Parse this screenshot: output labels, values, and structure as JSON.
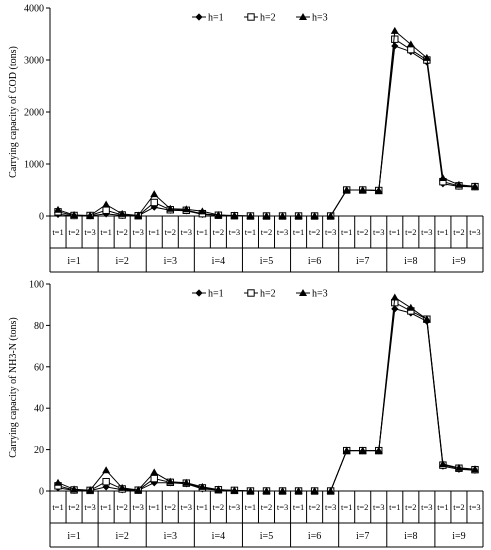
{
  "chart_data": [
    {
      "type": "line",
      "ylabel": "Carrying capacity of COD (tons)",
      "ylim": [
        0,
        4000
      ],
      "yticks": [
        0,
        1000,
        2000,
        3000,
        4000
      ],
      "categories": [
        "t=1",
        "t=2",
        "t=3",
        "t=1",
        "t=2",
        "t=3",
        "t=1",
        "t=2",
        "t=3",
        "t=1",
        "t=2",
        "t=3",
        "t=1",
        "t=2",
        "t=3",
        "t=1",
        "t=2",
        "t=3",
        "t=1",
        "t=2",
        "t=3",
        "t=1",
        "t=2",
        "t=3",
        "t=1",
        "t=2",
        "t=3"
      ],
      "groups": [
        "i=1",
        "i=2",
        "i=3",
        "i=4",
        "i=5",
        "i=6",
        "i=7",
        "i=8",
        "i=9"
      ],
      "legend_position": "top-center",
      "series": [
        {
          "name": "h=1",
          "marker": "diamond",
          "values": [
            30,
            5,
            5,
            40,
            10,
            5,
            170,
            110,
            100,
            30,
            15,
            5,
            0,
            0,
            0,
            0,
            0,
            0,
            500,
            500,
            490,
            3270,
            3160,
            2960,
            620,
            570,
            560
          ]
        },
        {
          "name": "h=2",
          "marker": "square-open",
          "values": [
            80,
            10,
            10,
            110,
            20,
            5,
            260,
            120,
            110,
            45,
            15,
            5,
            0,
            0,
            0,
            0,
            0,
            0,
            500,
            500,
            490,
            3400,
            3200,
            3000,
            660,
            580,
            565
          ]
        },
        {
          "name": "h=3",
          "marker": "triangle",
          "values": [
            120,
            20,
            10,
            220,
            40,
            10,
            420,
            140,
            130,
            90,
            20,
            10,
            0,
            0,
            0,
            0,
            0,
            0,
            500,
            500,
            490,
            3560,
            3300,
            3040,
            730,
            600,
            570
          ]
        }
      ]
    },
    {
      "type": "line",
      "ylabel": "Carrying capacity of NH3-N (tons)",
      "ylim": [
        0,
        100
      ],
      "yticks": [
        0,
        20,
        40,
        60,
        80,
        100
      ],
      "categories": [
        "t=1",
        "t=2",
        "t=3",
        "t=1",
        "t=2",
        "t=3",
        "t=1",
        "t=2",
        "t=3",
        "t=1",
        "t=2",
        "t=3",
        "t=1",
        "t=2",
        "t=3",
        "t=1",
        "t=2",
        "t=3",
        "t=1",
        "t=2",
        "t=3",
        "t=1",
        "t=2",
        "t=3",
        "t=1",
        "t=2",
        "t=3"
      ],
      "groups": [
        "i=1",
        "i=2",
        "i=3",
        "i=4",
        "i=5",
        "i=6",
        "i=7",
        "i=8",
        "i=9"
      ],
      "legend_position": "top-center",
      "series": [
        {
          "name": "h=1",
          "marker": "diamond",
          "values": [
            1.5,
            0.3,
            0.2,
            2,
            0.6,
            0.3,
            4,
            4,
            3.5,
            1,
            0.5,
            0.2,
            0,
            0,
            0,
            0,
            0,
            0,
            19.5,
            19.5,
            19.5,
            88,
            86,
            82,
            12,
            10.5,
            10
          ]
        },
        {
          "name": "h=2",
          "marker": "square-open",
          "values": [
            2.5,
            0.5,
            0.3,
            4.5,
            1,
            0.4,
            6,
            4.2,
            3.8,
            1.5,
            0.6,
            0.3,
            0,
            0,
            0,
            0,
            0,
            0,
            19.5,
            19.5,
            19.5,
            91,
            87,
            83,
            12.5,
            11,
            10.3
          ]
        },
        {
          "name": "h=3",
          "marker": "triangle",
          "values": [
            4,
            0.8,
            0.4,
            10,
            1.5,
            0.5,
            9,
            4.5,
            4,
            2,
            0.7,
            0.3,
            0,
            0,
            0,
            0,
            0,
            0,
            19.5,
            19.5,
            19.5,
            93.5,
            88.5,
            83,
            13,
            11.2,
            10.5
          ]
        }
      ]
    }
  ]
}
